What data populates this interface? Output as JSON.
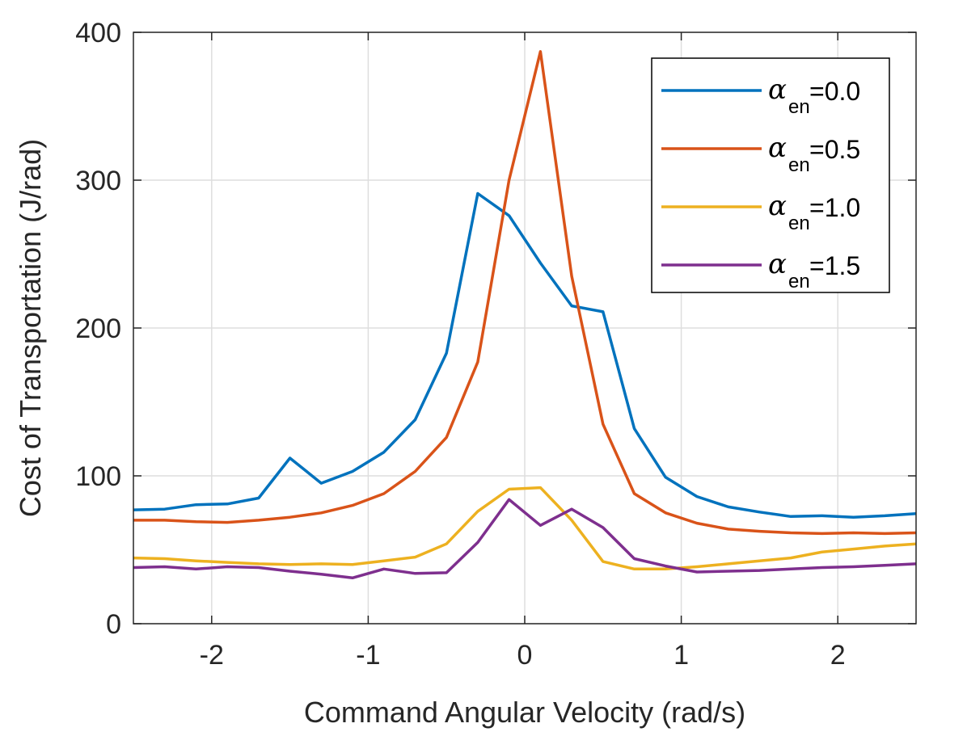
{
  "chart_data": {
    "type": "line",
    "title": "",
    "xlabel": "Command Angular Velocity (rad/s)",
    "ylabel": "Cost of Transportation (J/rad)",
    "xlim": [
      -2.5,
      2.5
    ],
    "ylim": [
      0,
      400
    ],
    "xticks": [
      -2,
      -1,
      0,
      1,
      2
    ],
    "xtick_labels": [
      "-2",
      "-1",
      "0",
      "1",
      "2"
    ],
    "yticks": [
      0,
      100,
      200,
      300,
      400
    ],
    "ytick_labels": [
      "0",
      "100",
      "200",
      "300",
      "400"
    ],
    "grid": true,
    "legend_position": "top-right",
    "x": [
      -2.5,
      -2.3,
      -2.1,
      -1.9,
      -1.7,
      -1.5,
      -1.3,
      -1.1,
      -0.9,
      -0.7,
      -0.5,
      -0.3,
      -0.1,
      0.1,
      0.3,
      0.5,
      0.7,
      0.9,
      1.1,
      1.3,
      1.5,
      1.7,
      1.9,
      2.1,
      2.3,
      2.5
    ],
    "series": [
      {
        "name": "α_en=0.0",
        "symbol": "α",
        "subscript": "en",
        "value_text": "=0.0",
        "color": "#0072BD",
        "values": [
          77,
          77.5,
          80.5,
          81,
          85,
          112,
          95,
          103,
          116,
          138,
          183,
          291,
          276,
          244,
          215,
          211,
          132,
          99,
          86,
          79,
          75.5,
          72.5,
          73,
          72,
          73,
          74.5
        ]
      },
      {
        "name": "α_en=0.5",
        "symbol": "α",
        "subscript": "en",
        "value_text": "=0.5",
        "color": "#D95319",
        "values": [
          70,
          70,
          69,
          68.5,
          70,
          72,
          75,
          80,
          88,
          103,
          126,
          177,
          300,
          387,
          235,
          135,
          88,
          75,
          68,
          64,
          62.5,
          61.5,
          61,
          61.5,
          61,
          61.5
        ]
      },
      {
        "name": "α_en=1.0",
        "symbol": "α",
        "subscript": "en",
        "value_text": "=1.0",
        "color": "#EDB120",
        "values": [
          44.5,
          44,
          42.5,
          41.5,
          40.5,
          40,
          40.5,
          40,
          42.5,
          45,
          54,
          76,
          91,
          92,
          70,
          42,
          37,
          37,
          38.5,
          40.5,
          42.5,
          44.5,
          48.5,
          50.5,
          52.5,
          54
        ]
      },
      {
        "name": "α_en=1.5",
        "symbol": "α",
        "subscript": "en",
        "value_text": "=1.5",
        "color": "#7E2F8E",
        "values": [
          38,
          38.5,
          37,
          38.5,
          38,
          35.5,
          33.5,
          31,
          37,
          34,
          34.5,
          55,
          84,
          66.5,
          77.5,
          65,
          44,
          39,
          35,
          35.5,
          36,
          37,
          38,
          38.5,
          39.5,
          40.5
        ]
      }
    ]
  }
}
